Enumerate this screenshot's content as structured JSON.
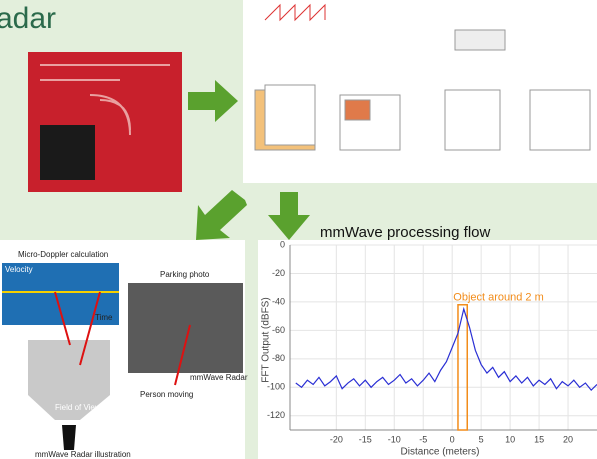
{
  "heading": "adar",
  "caption": "mmWave processing flow",
  "illustration": {
    "doppler_title": "Micro-Doppler calculation",
    "velocity": "Velocity",
    "time": "Time",
    "photo_title": "Parking photo",
    "radar": "mmWave Radar",
    "person": "Person moving",
    "field_of_view": "Field of View",
    "footer": "mmWave Radar illustration"
  },
  "chart_data": {
    "type": "line",
    "xlabel": "Distance (meters)",
    "ylabel": "FFT Output (dBFS)",
    "annotation": "Object around 2 m",
    "highlight_range": [
      1,
      2.6
    ],
    "highlight_color": "#f28c1a",
    "color": "#2a2fd4",
    "grid": true,
    "x": [
      -27,
      -26,
      -25,
      -24,
      -23,
      -22,
      -21,
      -20,
      -19,
      -18,
      -17,
      -16,
      -15,
      -14,
      -13,
      -12,
      -11,
      -10,
      -9,
      -8,
      -7,
      -6,
      -5,
      -4,
      -3,
      -2,
      -1,
      0,
      1,
      2,
      3,
      4,
      5,
      6,
      7,
      8,
      9,
      10,
      11,
      12,
      13,
      14,
      15,
      16,
      17,
      18,
      19,
      20,
      21,
      22,
      23,
      24,
      25
    ],
    "values": [
      -97,
      -100,
      -95,
      -98,
      -93,
      -99,
      -96,
      -92,
      -101,
      -97,
      -94,
      -99,
      -95,
      -100,
      -96,
      -93,
      -98,
      -95,
      -91,
      -97,
      -94,
      -99,
      -95,
      -90,
      -96,
      -88,
      -82,
      -72,
      -62,
      -45,
      -58,
      -74,
      -84,
      -90,
      -86,
      -93,
      -89,
      -96,
      -92,
      -97,
      -93,
      -99,
      -95,
      -98,
      -94,
      -101,
      -96,
      -99,
      -95,
      -100,
      -97,
      -102,
      -98
    ],
    "xlim": [
      -28,
      25
    ],
    "ylim": [
      -130,
      0
    ],
    "xticks": [
      -20,
      -15,
      -10,
      -5,
      0,
      5,
      10,
      15,
      20
    ],
    "yticks": [
      0,
      -20,
      -40,
      -60,
      -80,
      -100,
      -120
    ]
  }
}
